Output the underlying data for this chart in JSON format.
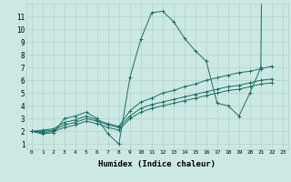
{
  "xlabel": "Humidex (Indice chaleur)",
  "bg_color": "#cce8e2",
  "grid_color": "#aaccc6",
  "line_color": "#1a6e64",
  "xlim": [
    -0.5,
    23.5
  ],
  "ylim": [
    0.6,
    12.0
  ],
  "xticks": [
    0,
    1,
    2,
    3,
    4,
    5,
    6,
    7,
    8,
    9,
    10,
    11,
    12,
    13,
    14,
    15,
    16,
    17,
    18,
    19,
    20,
    21,
    22,
    23
  ],
  "yticks": [
    1,
    2,
    3,
    4,
    5,
    6,
    7,
    8,
    9,
    10,
    11
  ],
  "x": [
    0,
    1,
    2,
    3,
    4,
    5,
    6,
    7,
    8,
    9,
    10,
    11,
    12,
    13,
    14,
    15,
    16,
    17,
    18,
    19,
    20,
    21,
    22
  ],
  "line1": [
    2.0,
    1.8,
    1.9,
    3.0,
    3.2,
    3.5,
    3.0,
    1.8,
    1.0,
    6.2,
    9.2,
    11.3,
    11.4,
    10.6,
    9.3,
    8.3,
    7.5,
    4.2,
    4.0,
    3.2,
    5.0,
    7.0,
    99
  ],
  "line2": [
    2.0,
    2.1,
    2.2,
    2.7,
    2.9,
    3.2,
    2.9,
    2.6,
    2.4,
    3.6,
    4.3,
    4.6,
    5.0,
    5.2,
    5.5,
    5.7,
    6.0,
    6.2,
    6.4,
    6.6,
    6.7,
    6.9,
    7.1
  ],
  "line3": [
    2.0,
    2.0,
    2.1,
    2.5,
    2.7,
    3.0,
    2.8,
    2.5,
    2.3,
    3.2,
    3.8,
    4.1,
    4.3,
    4.5,
    4.7,
    4.9,
    5.1,
    5.3,
    5.5,
    5.6,
    5.8,
    6.0,
    6.1
  ],
  "line4": [
    2.0,
    1.9,
    2.0,
    2.3,
    2.5,
    2.8,
    2.6,
    2.3,
    2.1,
    3.0,
    3.5,
    3.8,
    4.0,
    4.2,
    4.4,
    4.6,
    4.8,
    5.0,
    5.2,
    5.3,
    5.5,
    5.7,
    5.8
  ]
}
